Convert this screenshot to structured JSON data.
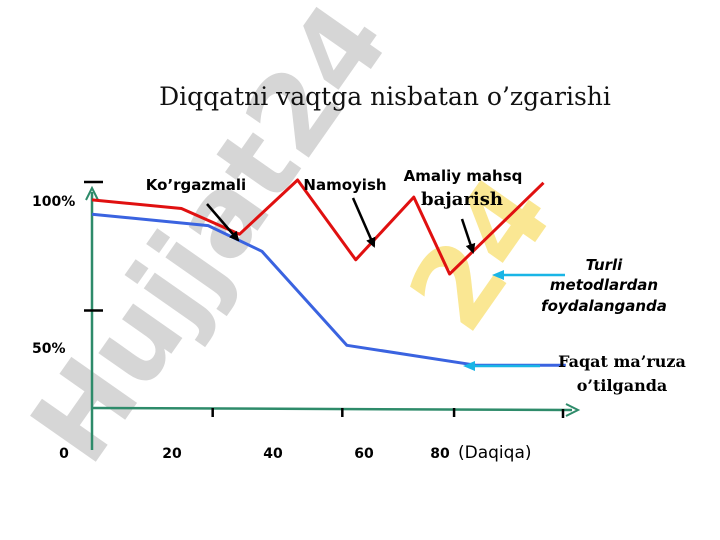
{
  "watermark": "Hujjat24",
  "chart_data": {
    "type": "line",
    "title": "Diqqatni vaqtga nisbatan o’zgarishi",
    "xlabel": "(Daqiqa)",
    "ylabel": "",
    "x_tick_labels": [
      {
        "x": 0,
        "label": "0"
      },
      {
        "x": 20,
        "label": "20"
      },
      {
        "x": 40,
        "label": "40"
      },
      {
        "x": 60,
        "label": "60"
      },
      {
        "x": 80,
        "label": "80"
      }
    ],
    "y_tick_labels": [
      {
        "y": 100,
        "label": "100%"
      },
      {
        "y": 50,
        "label": "50%"
      }
    ],
    "xlim": [
      0,
      105
    ],
    "ylim": [
      20,
      104
    ],
    "grid": false,
    "series": [
      {
        "name": "Turli metodlardan foydalanganda",
        "color": "#e01010",
        "points": [
          [
            0,
            93
          ],
          [
            20,
            90
          ],
          [
            33,
            81
          ],
          [
            46,
            100
          ],
          [
            59,
            72
          ],
          [
            72,
            94
          ],
          [
            80,
            67
          ],
          [
            101,
            99
          ]
        ]
      },
      {
        "name": "Faqat ma’ruza o’tilganda",
        "color": "#3a63e0",
        "points": [
          [
            0,
            88
          ],
          [
            26,
            84
          ],
          [
            38,
            75
          ],
          [
            57,
            42
          ],
          [
            86,
            35
          ],
          [
            106,
            35
          ]
        ]
      }
    ],
    "annotations": [
      {
        "text": "Ko’rgazmali",
        "arrow_to": [
          33,
          81
        ]
      },
      {
        "text": "Namoyish",
        "arrow_to": [
          62,
          79
        ]
      },
      {
        "text_line1": "Amaliy mahsq",
        "text_line2": "bajarish",
        "arrow_to": [
          83,
          82
        ]
      }
    ],
    "legend_labels": {
      "red": [
        "Turli",
        "metodlardan",
        "foydalanganda"
      ],
      "blue": [
        "Faqat ma’ruza",
        "o’tilganda"
      ]
    },
    "colors": {
      "axis": "#2e8b6a",
      "pointer_arrow": "#19b5e6",
      "watermark": "#b4b4b4",
      "watermark_accent": "#f5d33a"
    }
  }
}
